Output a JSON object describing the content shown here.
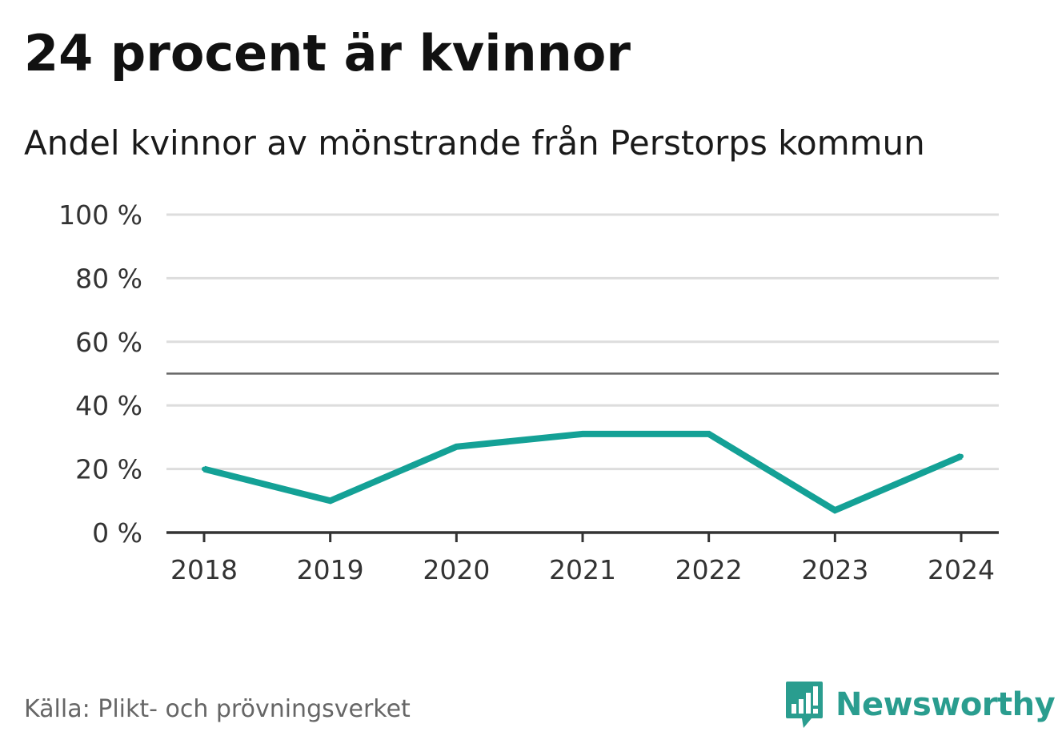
{
  "header": {
    "title": "24 procent är kvinnor",
    "subtitle": "Andel kvinnor av mönstrande från Perstorps kommun"
  },
  "chart_data": {
    "type": "line",
    "x": [
      "2018",
      "2019",
      "2020",
      "2021",
      "2022",
      "2023",
      "2024"
    ],
    "series": [
      {
        "values": [
          20,
          10,
          27,
          31,
          31,
          7,
          24
        ],
        "color": "#14a196"
      }
    ],
    "ylim": [
      0,
      100
    ],
    "yticks": [
      0,
      20,
      40,
      60,
      80,
      100
    ],
    "ytick_labels": [
      "0 %",
      "20 %",
      "40 %",
      "60 %",
      "80 %",
      "100 %"
    ],
    "reference_line": 50,
    "grid": true,
    "xlabel": "",
    "ylabel": ""
  },
  "footer": {
    "source": "Källa: Plikt- och prövningsverket",
    "brand": "Newsworthy",
    "brand_icon": "bar-chart-speech-bubble-icon"
  },
  "colors": {
    "line": "#14a196",
    "grid": "#dddddd",
    "reference": "#666666",
    "axis": "#333333",
    "brand": "#2a9d8f"
  }
}
